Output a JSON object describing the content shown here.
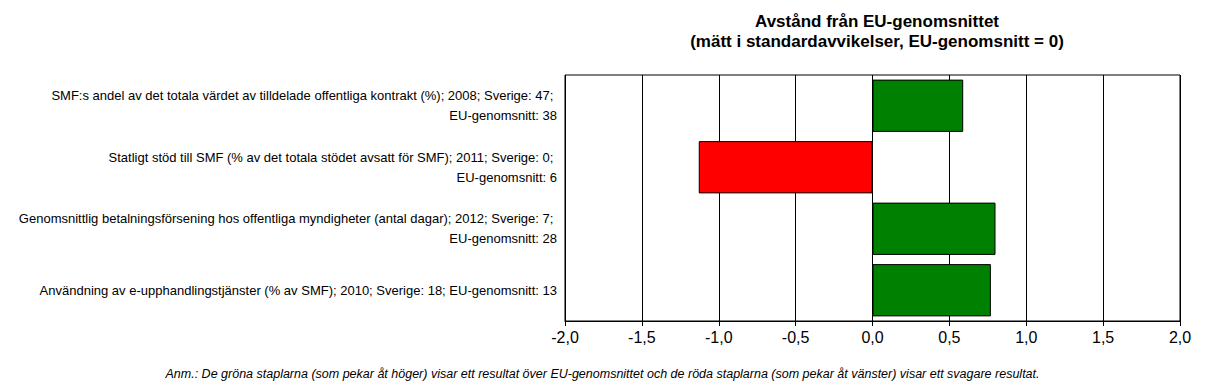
{
  "chart_data": {
    "type": "bar",
    "orientation": "horizontal",
    "title": "Avstånd från EU-genomsnittet",
    "subtitle": "(mätt i standardavvikelser, EU-genomsnitt = 0)",
    "annotation": "Anm.: De gröna staplarna (som pekar åt höger) visar ett resultat över EU-genomsnittet och de röda staplarna (som pekar åt vänster) visar ett svagare resultat.",
    "categories": [
      "SMF:s andel av det totala värdet av tilldelade offentliga kontrakt (%); 2008; Sverige: 47; EU-genomsnitt: 38",
      "Statligt stöd till SMF (% av det totala stödet avsatt för SMF); 2011; Sverige: 0; EU-genomsnitt: 6",
      "Genomsnittlig betalningsförsening hos offentliga myndigheter (antal dagar); 2012; Sverige: 7; EU-genomsnitt: 28",
      "Användning av e-upphandlingstjänster (% av SMF); 2010; Sverige: 18; EU-genomsnitt: 13"
    ],
    "values": [
      0.59,
      -1.13,
      0.8,
      0.77
    ],
    "colors": [
      "#008000",
      "#ff0000",
      "#008000",
      "#008000"
    ],
    "xlim": [
      -2,
      2
    ],
    "xticks": [
      {
        "value": -2,
        "label": "-2,0"
      },
      {
        "value": -1.5,
        "label": "-1,5"
      },
      {
        "value": -1,
        "label": "-1,0"
      },
      {
        "value": -0.5,
        "label": "-0,5"
      },
      {
        "value": 0,
        "label": "0,0"
      },
      {
        "value": 0.5,
        "label": "0,5"
      },
      {
        "value": 1,
        "label": "1,0"
      },
      {
        "value": 1.5,
        "label": "1,5"
      },
      {
        "value": 2,
        "label": "2,0"
      }
    ],
    "grid": true
  }
}
